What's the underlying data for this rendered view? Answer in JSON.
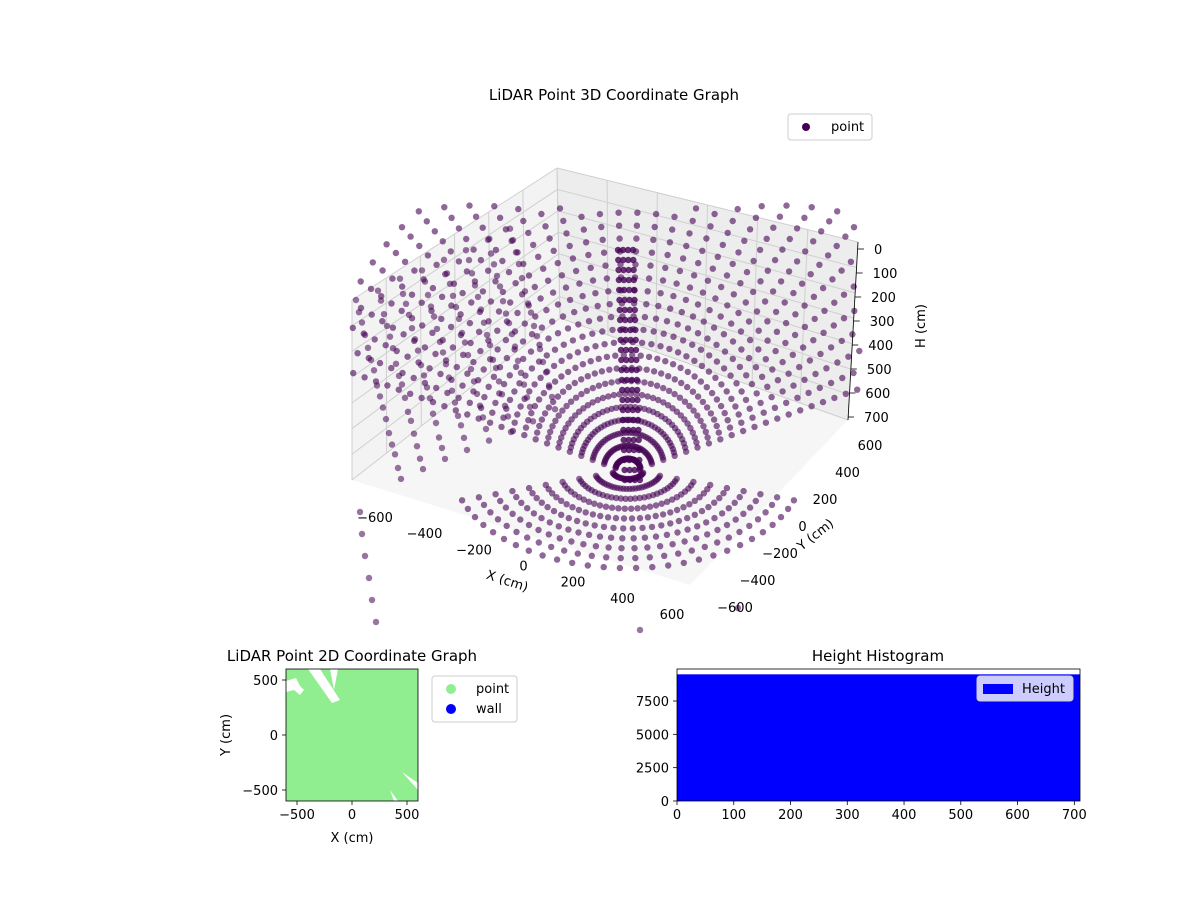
{
  "chart_data": [
    {
      "type": "scatter",
      "projection": "3d",
      "title": "LiDAR Point 3D Coordinate Graph",
      "xlabel": "X (cm)",
      "ylabel": "Y (cm)",
      "zlabel": "H (cm)",
      "xlim": [
        -600,
        600
      ],
      "ylim": [
        -600,
        600
      ],
      "zlim": [
        0,
        700
      ],
      "z_inverted": true,
      "x_ticks": [
        "−600",
        "−400",
        "−200",
        "0",
        "200",
        "400",
        "600"
      ],
      "y_ticks": [
        "−600",
        "−400",
        "−200",
        "0",
        "200",
        "400",
        "600"
      ],
      "z_ticks": [
        "0",
        "100",
        "200",
        "300",
        "400",
        "500",
        "600",
        "700"
      ],
      "grid": true,
      "legend_position": "top-right",
      "series": [
        {
          "name": "point",
          "color": "#440154",
          "alpha": 0.6,
          "description_shape": "concentric rings of lidar scan points forming a bowl around the sensor"
        }
      ]
    },
    {
      "type": "scatter",
      "title": "LiDAR Point 2D Coordinate Graph",
      "xlabel": "X (cm)",
      "ylabel": "Y (cm)",
      "xlim": [
        -600,
        600
      ],
      "ylim": [
        -600,
        600
      ],
      "x_ticks": [
        "−500",
        "0",
        "500"
      ],
      "y_ticks": [
        "−500",
        "0",
        "500"
      ],
      "legend_position": "outside-right",
      "series": [
        {
          "name": "point",
          "color": "#90ee90"
        },
        {
          "name": "wall",
          "color": "#0000ff"
        }
      ]
    },
    {
      "type": "bar",
      "title": "Height Histogram",
      "xlim": [
        0,
        710
      ],
      "ylim": [
        0,
        9900
      ],
      "x_ticks": [
        "0",
        "100",
        "200",
        "300",
        "400",
        "500",
        "600",
        "700"
      ],
      "y_ticks": [
        "0",
        "2500",
        "5000",
        "7500"
      ],
      "legend_position": "top-right",
      "series": [
        {
          "name": "Height",
          "color": "#0000ff",
          "bin_value": 9500
        }
      ]
    }
  ]
}
